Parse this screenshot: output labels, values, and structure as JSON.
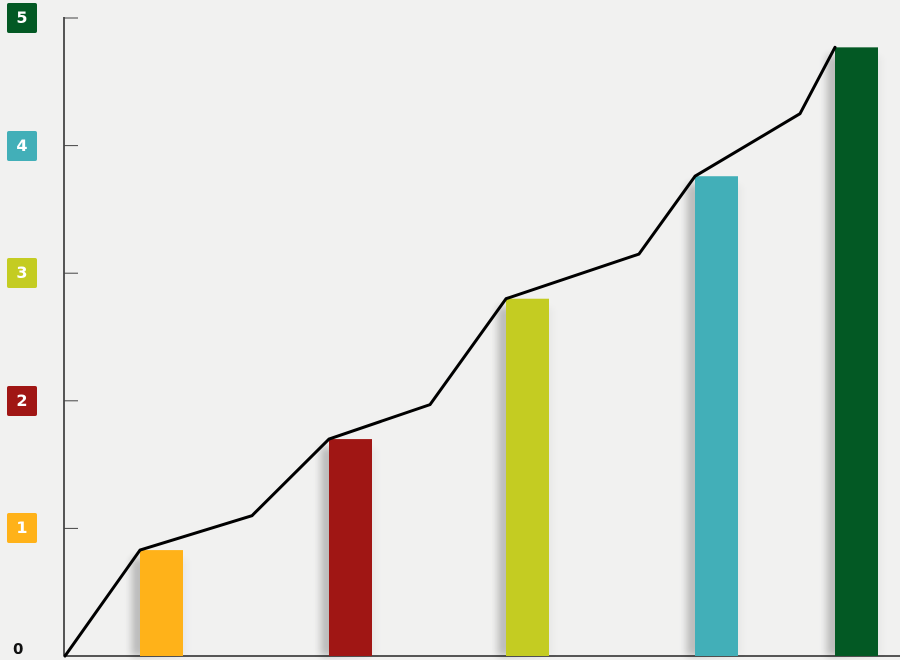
{
  "chart_data": {
    "type": "bar",
    "title": "",
    "xlabel": "",
    "ylabel": "",
    "ylim": [
      0,
      5
    ],
    "y_ticks": [
      "0",
      "1",
      "2",
      "3",
      "4",
      "5"
    ],
    "tick_colors": [
      "#ffb219",
      "#a01614",
      "#c4cc22",
      "#42afb8",
      "#035924"
    ],
    "bar_values": [
      0.83,
      1.7,
      2.8,
      3.76,
      4.77
    ],
    "bar_colors": [
      "#ffb219",
      "#a01614",
      "#c4cc22",
      "#42afb8",
      "#035924"
    ],
    "line_values": [
      0,
      0.83,
      1.1,
      1.7,
      1.97,
      2.8,
      3.15,
      3.76,
      4.25,
      4.77
    ],
    "grid": false,
    "legend": "none"
  }
}
